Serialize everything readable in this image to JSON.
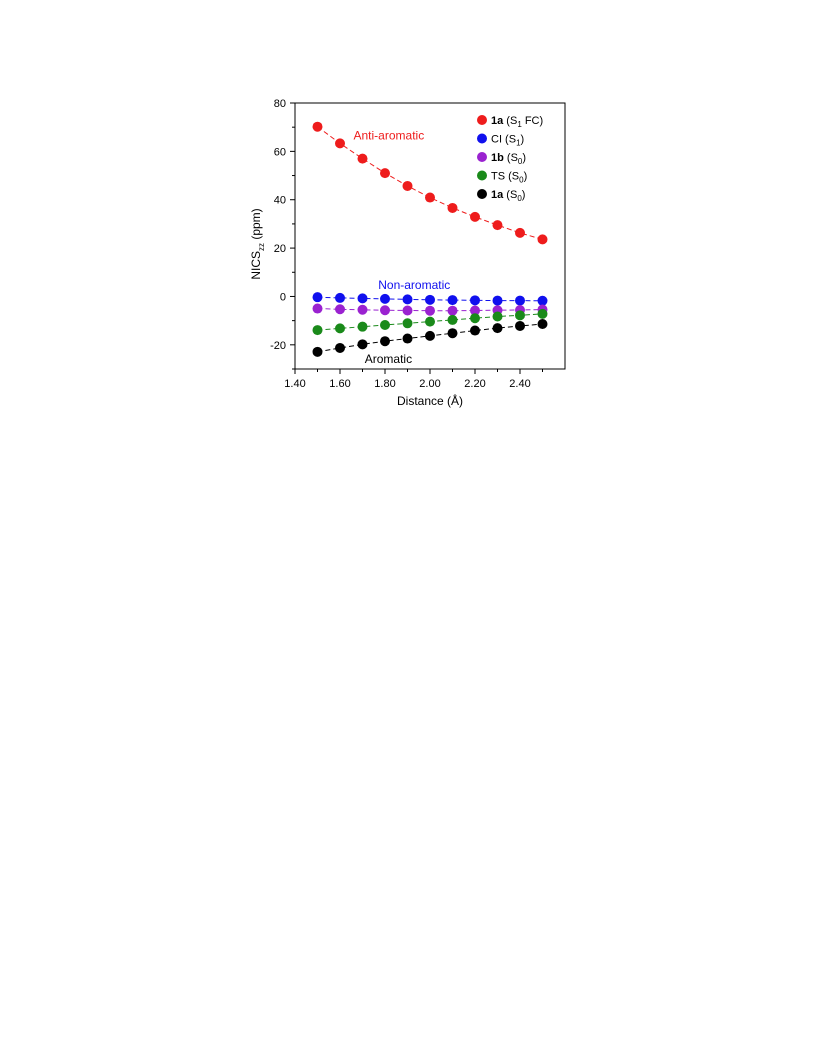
{
  "chart_data": {
    "type": "scatter",
    "xlabel": "Distance (Å)",
    "ylabel": {
      "main": "NICS",
      "sub": "zz",
      "tail": " (ppm)"
    },
    "xlim": [
      1.4,
      2.6
    ],
    "ylim": [
      -30,
      80
    ],
    "xticks": [
      1.4,
      1.6,
      1.8,
      2.0,
      2.2,
      2.4
    ],
    "xtick_labels": [
      "1.40",
      "1.60",
      "1.80",
      "2.00",
      "2.20",
      "2.40"
    ],
    "yticks": [
      -20,
      0,
      20,
      40,
      60,
      80
    ],
    "ytick_labels": [
      "-20",
      "0",
      "20",
      "40",
      "60",
      "80"
    ],
    "grid": false,
    "legend_position": "top-right",
    "x": [
      1.5,
      1.6,
      1.7,
      1.8,
      1.9,
      2.0,
      2.1,
      2.2,
      2.3,
      2.4,
      2.5
    ],
    "series": [
      {
        "name": {
          "bold": "1a",
          "text": " (S",
          "sub": "1",
          "after": " FC)"
        },
        "color": "#ee1c1c",
        "values": [
          70.2,
          63.3,
          57.0,
          51.0,
          45.7,
          40.9,
          36.6,
          32.9,
          29.5,
          26.3,
          23.6
        ]
      },
      {
        "name": {
          "bold": "",
          "text": "CI (S",
          "sub": "1",
          "after": ")"
        },
        "color": "#1010ee",
        "values": [
          -0.3,
          -0.6,
          -0.8,
          -1.0,
          -1.2,
          -1.4,
          -1.5,
          -1.6,
          -1.7,
          -1.7,
          -1.8
        ]
      },
      {
        "name": {
          "bold": "1b",
          "text": " (S",
          "sub": "0",
          "after": ")"
        },
        "color": "#9a22d0",
        "values": [
          -5.0,
          -5.3,
          -5.5,
          -5.7,
          -5.8,
          -5.9,
          -5.9,
          -5.8,
          -5.7,
          -5.6,
          -5.4
        ]
      },
      {
        "name": {
          "bold": "",
          "text": "TS (S",
          "sub": "0",
          "after": ")"
        },
        "color": "#1a8a1a",
        "values": [
          -13.9,
          -13.2,
          -12.5,
          -11.8,
          -11.1,
          -10.4,
          -9.7,
          -9.0,
          -8.3,
          -7.8,
          -7.2
        ]
      },
      {
        "name": {
          "bold": "1a",
          "text": " (S",
          "sub": "0",
          "after": ")"
        },
        "color": "#000000",
        "values": [
          -22.9,
          -21.3,
          -19.8,
          -18.5,
          -17.4,
          -16.3,
          -15.2,
          -14.1,
          -13.1,
          -12.2,
          -11.4
        ]
      }
    ],
    "annotations": [
      {
        "text": "Anti-aromatic",
        "x": 1.66,
        "y": 65.0,
        "color": "#ee1c1c"
      },
      {
        "text": "Non-aromatic",
        "x": 1.77,
        "y": 3.0,
        "color": "#1010ee"
      },
      {
        "text": "Aromatic",
        "x": 1.71,
        "y": -27.5,
        "color": "#000000"
      }
    ]
  }
}
